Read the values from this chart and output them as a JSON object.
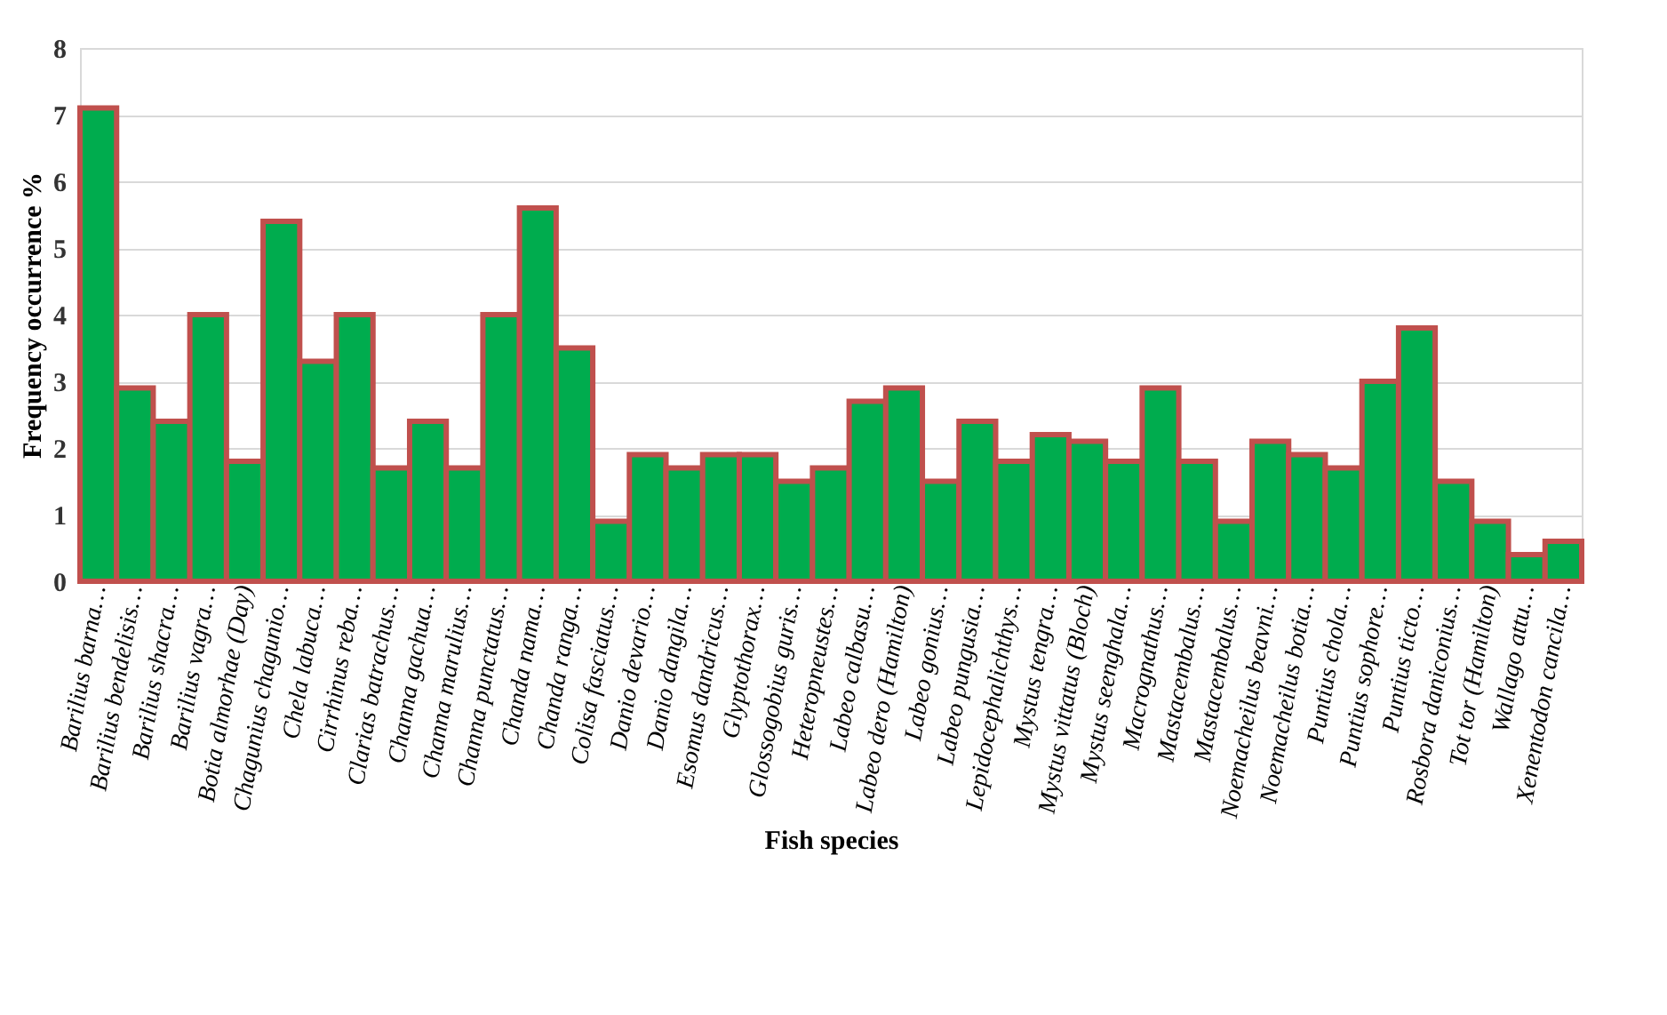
{
  "chart_data": {
    "type": "bar",
    "xlabel": "Fish species",
    "ylabel": "Frequency occurrence %",
    "categories": [
      "Barilius barna…",
      "Barilius bendelisis…",
      "Barilius shacra…",
      "Barilius vagra…",
      "Botia almorhae (Day)",
      "Chagunius chagunio…",
      "Chela labuca…",
      "Cirrhinus reba…",
      "Clarias batrachus…",
      "Channa gachua…",
      "Channa marulius…",
      "Channa punctatus…",
      "Chanda nama…",
      "Chanda ranga…",
      "Colisa fasciatus…",
      "Danio devario…",
      "Danio dangila…",
      "Esomus dandricus…",
      "Glyptothorax…",
      "Glossogobius guris…",
      "Heteropneustes…",
      "Labeo calbasu…",
      "Labeo dero (Hamilton)",
      "Labeo gonius…",
      "Labeo pungusia…",
      "Lepidocephalichthys…",
      "Mystus tengra…",
      "Mystus vittatus (Bloch)",
      "Mystus seenghala…",
      "Macrognathus…",
      "Mastacembalus…",
      "Mastacembalus…",
      "Noemacheilus beavni…",
      "Noemacheilus botia…",
      "Puntius chola…",
      "Puntius sophore…",
      "Puntius ticto…",
      "Rosbora daniconius…",
      "Tot tor (Hamilton)",
      "Wallago attu…",
      "Xenentodon cancila…"
    ],
    "values": [
      7.1,
      2.9,
      2.4,
      4.0,
      1.8,
      5.4,
      3.3,
      4.0,
      1.7,
      2.4,
      1.7,
      4.0,
      5.6,
      3.5,
      0.9,
      1.9,
      1.7,
      1.9,
      1.9,
      1.5,
      1.7,
      2.7,
      2.9,
      1.5,
      2.4,
      1.8,
      2.2,
      2.1,
      1.8,
      2.9,
      1.8,
      0.9,
      2.1,
      1.9,
      1.7,
      3.0,
      3.8,
      1.5,
      0.9,
      0.4,
      0.6
    ],
    "color": "#00ac4e",
    "ylim": [
      0,
      8
    ],
    "yticks": [
      0,
      1,
      2,
      3,
      4,
      5,
      6,
      7,
      8
    ],
    "grid": "y"
  }
}
